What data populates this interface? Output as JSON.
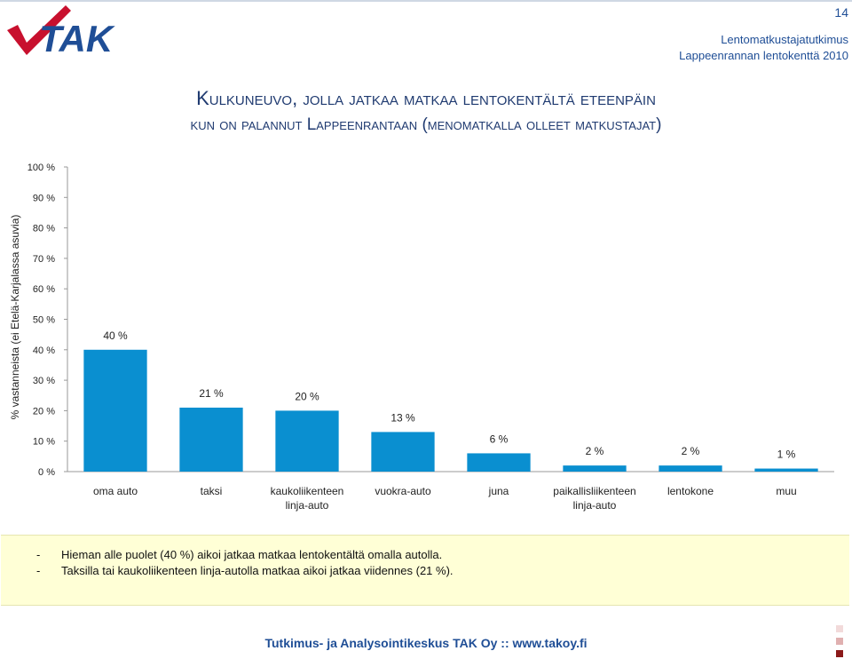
{
  "brand": {
    "logo_text": "TAK",
    "accent": "#1f4e96",
    "check_color": "#c8102e"
  },
  "header": {
    "page_number": "14",
    "line1": "Lentomatkustajatutkimus",
    "line2": "Lappeenrannan lentokenttä 2010"
  },
  "title": {
    "line1": "Kulkuneuvo, jolla jatkaa matkaa lentokentältä eteenpäin",
    "line2": "kun on palannut Lappeenrantaan (menomatkalla olleet matkustajat)"
  },
  "chart_data": {
    "type": "bar",
    "ylabel": "% vastanneista (ei Etelä-Karjalassa asuvia)",
    "ylim": [
      0,
      100
    ],
    "yticks": [
      "0 %",
      "10 %",
      "20 %",
      "30 %",
      "40 %",
      "50 %",
      "60 %",
      "70 %",
      "80 %",
      "90 %",
      "100 %"
    ],
    "categories": [
      [
        "oma auto"
      ],
      [
        "taksi"
      ],
      [
        "kaukoliikenteen",
        "linja-auto"
      ],
      [
        "vuokra-auto"
      ],
      [
        "juna"
      ],
      [
        "paikallisliikenteen",
        "linja-auto"
      ],
      [
        "lentokone"
      ],
      [
        "muu"
      ]
    ],
    "values": [
      40,
      21,
      20,
      13,
      6,
      2,
      2,
      1
    ],
    "data_labels": [
      "40 %",
      "21 %",
      "20 %",
      "13 %",
      "6 %",
      "2 %",
      "2 %",
      "1 %"
    ],
    "bar_color": "#0a8fd0",
    "grid": false,
    "legend": "none"
  },
  "notes": [
    {
      "dash": "-",
      "text": "Hieman alle puolet (40 %) aikoi jatkaa matkaa lentokentältä omalla autolla."
    },
    {
      "dash": "-",
      "text": "Taksilla tai kaukoliikenteen linja-autolla matkaa aikoi jatkaa viidennes (21 %)."
    }
  ],
  "footer": {
    "text": "Tutkimus- ja Analysointikeskus TAK Oy :: www.takoy.fi"
  }
}
